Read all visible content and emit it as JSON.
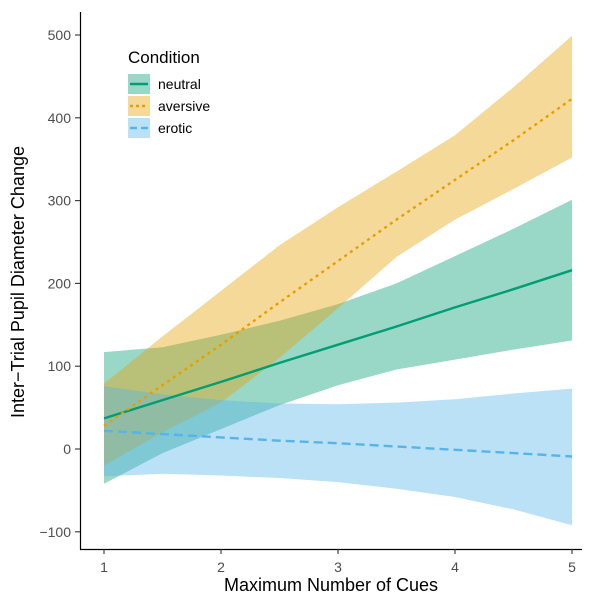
{
  "chart_data": {
    "type": "line",
    "xlabel": "Maximum Number of Cues",
    "ylabel": "Inter−Trial Pupil Diameter Change",
    "xlim": [
      0.84,
      5.0
    ],
    "ylim": [
      -100,
      520
    ],
    "x_ticks": [
      "1",
      "2",
      "3",
      "4",
      "5"
    ],
    "y_ticks": [
      "−100",
      "0",
      "100",
      "200",
      "300",
      "400",
      "500"
    ],
    "legend": {
      "title": "Condition",
      "placement": "top-left"
    },
    "x": [
      1,
      1.5,
      2,
      2.5,
      3,
      3.5,
      4,
      4.5,
      5
    ],
    "series": [
      {
        "name": "neutral",
        "color": "#009E73",
        "dash": "solid",
        "values": [
          37,
          59,
          81,
          104,
          126,
          148,
          171,
          193,
          216
        ],
        "lower": [
          -42,
          -5,
          24,
          53,
          77,
          96,
          108,
          120,
          131
        ],
        "upper": [
          117,
          123,
          138,
          155,
          175,
          200,
          233,
          266,
          301
        ]
      },
      {
        "name": "aversive",
        "color": "#E69F00",
        "dash": "dotted",
        "values": [
          28,
          77,
          126,
          177,
          227,
          277,
          325,
          373,
          423
        ],
        "lower": [
          -20,
          20,
          56,
          110,
          170,
          232,
          277,
          314,
          352
        ],
        "upper": [
          79,
          136,
          191,
          246,
          292,
          335,
          379,
          437,
          499
        ]
      },
      {
        "name": "erotic",
        "color": "#56B4E9",
        "dash": "dashed",
        "values": [
          22,
          18,
          14,
          10,
          7,
          3,
          -1,
          -5,
          -9
        ],
        "lower": [
          -33,
          -30,
          -32,
          -35,
          -40,
          -48,
          -58,
          -73,
          -92
        ],
        "upper": [
          76,
          66,
          59,
          55,
          54,
          56,
          60,
          67,
          73
        ]
      }
    ]
  }
}
